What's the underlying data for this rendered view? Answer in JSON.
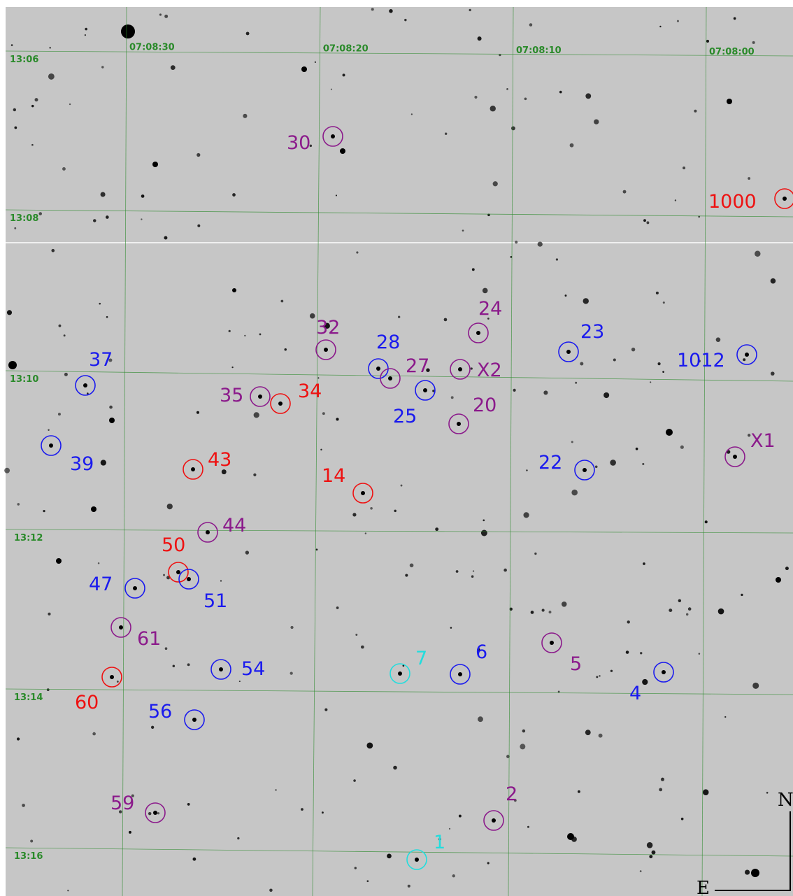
{
  "grid": {
    "ra_labels": [
      "07:08:30",
      "07:08:20",
      "07:08:10",
      "07:08:00"
    ],
    "dec_labels": [
      "13:06",
      "13:08",
      "13:10",
      "13:12",
      "13:14",
      "13:16"
    ],
    "color": "#2a8a2a"
  },
  "markers": [
    {
      "label": "30",
      "color": "#8b1a8b"
    },
    {
      "label": "1000",
      "color": "#ee1111"
    },
    {
      "label": "24",
      "color": "#8b1a8b"
    },
    {
      "label": "32",
      "color": "#8b1a8b"
    },
    {
      "label": "28",
      "color": "#1a1aee"
    },
    {
      "label": "27",
      "color": "#8b1a8b"
    },
    {
      "label": "X2",
      "color": "#8b1a8b"
    },
    {
      "label": "23",
      "color": "#1a1aee"
    },
    {
      "label": "1012",
      "color": "#1a1aee"
    },
    {
      "label": "37",
      "color": "#1a1aee"
    },
    {
      "label": "35",
      "color": "#8b1a8b"
    },
    {
      "label": "34",
      "color": "#ee1111"
    },
    {
      "label": "25",
      "color": "#1a1aee"
    },
    {
      "label": "20",
      "color": "#8b1a8b"
    },
    {
      "label": "39",
      "color": "#1a1aee"
    },
    {
      "label": "X1",
      "color": "#8b1a8b"
    },
    {
      "label": "22",
      "color": "#1a1aee"
    },
    {
      "label": "43",
      "color": "#ee1111"
    },
    {
      "label": "14",
      "color": "#ee1111"
    },
    {
      "label": "44",
      "color": "#8b1a8b"
    },
    {
      "label": "50",
      "color": "#ee1111"
    },
    {
      "label": "51",
      "color": "#1a1aee"
    },
    {
      "label": "47",
      "color": "#1a1aee"
    },
    {
      "label": "61",
      "color": "#8b1a8b"
    },
    {
      "label": "5",
      "color": "#8b1a8b"
    },
    {
      "label": "7",
      "color": "#22dddd"
    },
    {
      "label": "6",
      "color": "#1a1aee"
    },
    {
      "label": "54",
      "color": "#1a1aee"
    },
    {
      "label": "4",
      "color": "#1a1aee"
    },
    {
      "label": "60",
      "color": "#ee1111"
    },
    {
      "label": "56",
      "color": "#1a1aee"
    },
    {
      "label": "2",
      "color": "#8b1a8b"
    },
    {
      "label": "59",
      "color": "#8b1a8b"
    },
    {
      "label": "1",
      "color": "#22dddd"
    }
  ],
  "compass": {
    "north": "N",
    "east": "E"
  }
}
